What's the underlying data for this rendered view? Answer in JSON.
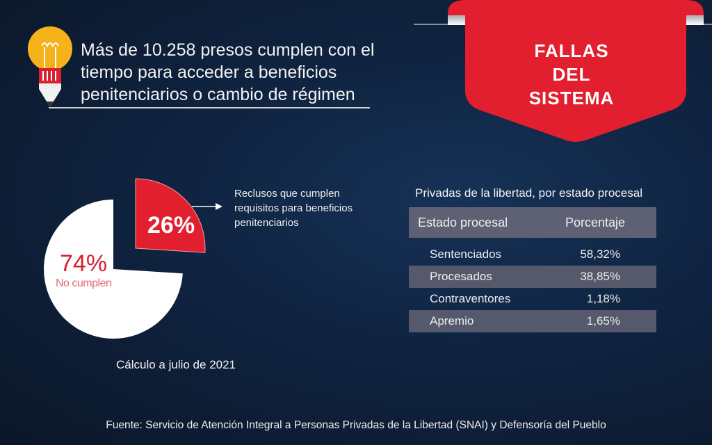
{
  "header": {
    "lines": [
      "Más de 10.258 presos cumplen con el",
      "tiempo para acceder a beneficios",
      "penitenciarios o cambio de régimen"
    ]
  },
  "banner": {
    "lines": [
      "FALLAS",
      "DEL",
      "SISTEMA"
    ],
    "color": "#e21f2f"
  },
  "chart_data": {
    "type": "pie",
    "slices": [
      {
        "label": "Reclusos que cumplen requisitos para beneficios penitenciarios",
        "value": 26,
        "display": "26%",
        "color": "#e21f2f"
      },
      {
        "label": "No cumplen",
        "value": 74,
        "display": "74%",
        "color": "#ffffff"
      }
    ],
    "annotation": "Reclusos que cumplen requisitos para beneficios penitenciarios",
    "caption": "Cálculo a julio de 2021"
  },
  "table": {
    "title": "Privadas de la libertad, por estado procesal",
    "headers": [
      "Estado procesal",
      "Porcentaje"
    ],
    "rows": [
      [
        "Sentenciados",
        "58,32%"
      ],
      [
        "Procesados",
        "38,85%"
      ],
      [
        "Contraventores",
        "1,18%"
      ],
      [
        "Apremio",
        "1,65%"
      ]
    ]
  },
  "footer": "Fuente: Servicio de Atención Integral a Personas Privadas de la Libertad (SNAI) y Defensoría del Pueblo"
}
